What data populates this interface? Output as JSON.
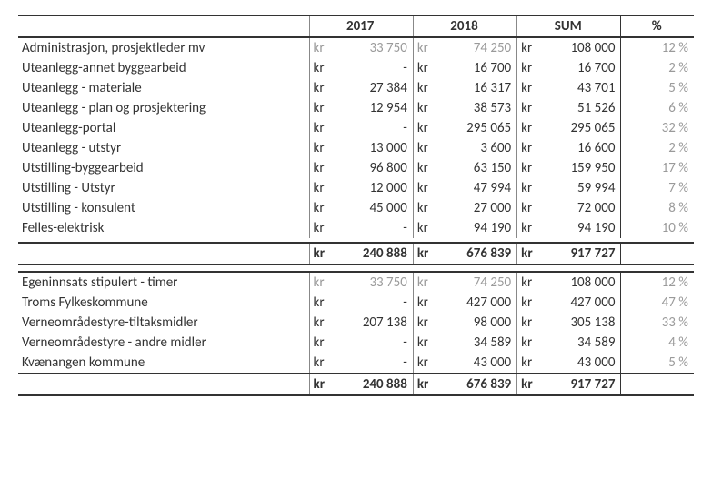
{
  "colors": {
    "text": "#333333",
    "text_dim": "#9a9a9a",
    "rule_dark": "#333333",
    "rule_light": "#888888",
    "background": "#ffffff"
  },
  "typography": {
    "family": "Calibri",
    "base_size_pt": 11
  },
  "currency_label": "kr",
  "dash": "-",
  "columns": {
    "y2017": "2017",
    "y2018": "2018",
    "sum": "SUM",
    "pct": "%"
  },
  "section1": {
    "rows": [
      {
        "label": "Administrasjon, prosjektleder mv",
        "y2017": "33 750",
        "y2018": "74 250",
        "sum": "108 000",
        "pct": "12 %",
        "dim": true
      },
      {
        "label": "Uteanlegg-annet byggearbeid",
        "y2017": "-",
        "y2018": "16 700",
        "sum": "16 700",
        "pct": "2 %"
      },
      {
        "label": "Uteanlegg - materiale",
        "y2017": "27 384",
        "y2018": "16 317",
        "sum": "43 701",
        "pct": "5 %"
      },
      {
        "label": "Uteanlegg - plan og prosjektering",
        "y2017": "12 954",
        "y2018": "38 573",
        "sum": "51 526",
        "pct": "6 %"
      },
      {
        "label": "Uteanlegg-portal",
        "y2017": "-",
        "y2018": "295 065",
        "sum": "295 065",
        "pct": "32 %"
      },
      {
        "label": "Uteanlegg - utstyr",
        "y2017": "13 000",
        "y2018": "3 600",
        "sum": "16 600",
        "pct": "2 %"
      },
      {
        "label": "Utstilling-byggearbeid",
        "y2017": "96 800",
        "y2018": "63 150",
        "sum": "159 950",
        "pct": "17 %"
      },
      {
        "label": "Utstilling - Utstyr",
        "y2017": "12 000",
        "y2018": "47 994",
        "sum": "59 994",
        "pct": "7 %"
      },
      {
        "label": "Utstilling - konsulent",
        "y2017": "45 000",
        "y2018": "27 000",
        "sum": "72 000",
        "pct": "8 %"
      },
      {
        "label": "Felles-elektrisk",
        "y2017": "-",
        "y2018": "94 190",
        "sum": "94 190",
        "pct": "10 %"
      }
    ],
    "total": {
      "y2017": "240 888",
      "y2018": "676 839",
      "sum": "917 727"
    }
  },
  "section2": {
    "rows": [
      {
        "label": "Egeninnsats stipulert - timer",
        "y2017": "33 750",
        "y2018": "74 250",
        "sum": "108 000",
        "pct": "12 %",
        "dim": true
      },
      {
        "label": "Troms Fylkeskommune",
        "y2017": "-",
        "y2018": "427 000",
        "sum": "427 000",
        "pct": "47 %"
      },
      {
        "label": "Verneområdestyre-tiltaksmidler",
        "y2017": "207 138",
        "y2018": "98 000",
        "sum": "305 138",
        "pct": "33 %"
      },
      {
        "label": "Verneområdestyre - andre midler",
        "y2017": "-",
        "y2018": "34 589",
        "sum": "34 589",
        "pct": "4 %"
      },
      {
        "label": "Kvænangen kommune",
        "y2017": "-",
        "y2018": "43 000",
        "sum": "43 000",
        "pct": "5 %"
      }
    ],
    "total": {
      "y2017": "240 888",
      "y2018": "676 839",
      "sum": "917 727"
    }
  }
}
